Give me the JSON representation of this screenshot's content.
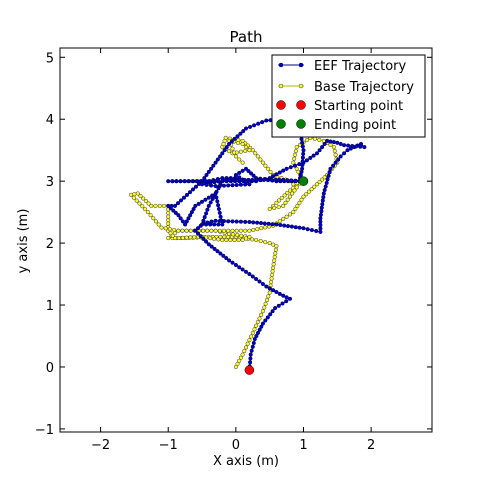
{
  "chart_data": {
    "type": "line",
    "title": "Path",
    "xlabel": "X axis (m)",
    "ylabel": "y axis (m)",
    "xlim": [
      -2.6,
      2.9
    ],
    "ylim": [
      -1.05,
      5.15
    ],
    "x_ticks": [
      "−2",
      "−1",
      "0",
      "1",
      "2"
    ],
    "y_ticks": [
      "−1",
      "0",
      "1",
      "2",
      "3",
      "4",
      "5"
    ],
    "grid": false,
    "legend_position": "top-right",
    "series": [
      {
        "name": "EEF Trajectory",
        "color": "#00008b",
        "marker_face": "#0000cc",
        "points": [
          [
            0.2,
            -0.05
          ],
          [
            0.22,
            0.2
          ],
          [
            0.28,
            0.45
          ],
          [
            0.4,
            0.7
          ],
          [
            0.58,
            0.95
          ],
          [
            0.8,
            1.1
          ],
          [
            0.7,
            1.15
          ],
          [
            0.45,
            1.3
          ],
          [
            0.2,
            1.5
          ],
          [
            -0.1,
            1.72
          ],
          [
            -0.4,
            1.98
          ],
          [
            -0.6,
            2.2
          ],
          [
            -0.48,
            2.32
          ],
          [
            -0.3,
            2.36
          ],
          [
            0.2,
            2.34
          ],
          [
            0.6,
            2.3
          ],
          [
            1.0,
            2.24
          ],
          [
            1.25,
            2.18
          ],
          [
            1.25,
            2.4
          ],
          [
            1.3,
            2.8
          ],
          [
            1.4,
            3.2
          ],
          [
            1.55,
            3.4
          ],
          [
            1.65,
            3.5
          ],
          [
            1.85,
            3.6
          ],
          [
            1.9,
            3.55
          ],
          [
            1.6,
            3.58
          ],
          [
            1.5,
            3.62
          ],
          [
            1.35,
            3.65
          ],
          [
            1.2,
            3.45
          ],
          [
            1.0,
            3.3
          ],
          [
            0.75,
            3.2
          ],
          [
            0.5,
            3.05
          ],
          [
            0.3,
            3.0
          ],
          [
            -0.2,
            3.0
          ],
          [
            -1.0,
            3.0
          ],
          [
            -0.7,
            3.0
          ],
          [
            -0.4,
            3.0
          ],
          [
            -0.2,
            3.05
          ],
          [
            0.05,
            3.05
          ],
          [
            -0.5,
            2.95
          ],
          [
            -0.3,
            2.92
          ],
          [
            0.2,
            2.95
          ],
          [
            0.0,
            3.1
          ],
          [
            0.15,
            3.2
          ],
          [
            0.3,
            3.05
          ],
          [
            0.6,
            3.0
          ],
          [
            1.0,
            3.0
          ],
          [
            0.7,
            3.02
          ],
          [
            0.3,
            3.02
          ],
          [
            -0.1,
            3.02
          ],
          [
            -0.2,
            3.0
          ],
          [
            -0.4,
            2.6
          ],
          [
            -0.5,
            2.3
          ],
          [
            -0.2,
            2.3
          ],
          [
            -0.3,
            2.8
          ],
          [
            -0.6,
            2.6
          ],
          [
            -0.75,
            2.3
          ],
          [
            -0.85,
            2.45
          ],
          [
            -1.0,
            2.6
          ],
          [
            -0.9,
            2.6
          ],
          [
            -0.5,
            3.0
          ],
          [
            -0.3,
            3.3
          ],
          [
            -0.1,
            3.6
          ],
          [
            0.15,
            3.85
          ],
          [
            0.45,
            3.98
          ],
          [
            0.7,
            4.0
          ],
          [
            0.85,
            3.95
          ],
          [
            0.95,
            3.8
          ],
          [
            1.0,
            3.5
          ],
          [
            0.98,
            3.2
          ],
          [
            0.95,
            3.05
          ]
        ]
      },
      {
        "name": "Base Trajectory",
        "color": "#b3b300",
        "marker_face": "#ffff33",
        "points": [
          [
            0.0,
            0.0
          ],
          [
            0.1,
            0.2
          ],
          [
            0.25,
            0.55
          ],
          [
            0.4,
            0.9
          ],
          [
            0.5,
            1.2
          ],
          [
            0.55,
            1.6
          ],
          [
            0.6,
            1.95
          ],
          [
            0.5,
            2.0
          ],
          [
            0.3,
            2.05
          ],
          [
            0.0,
            2.1
          ],
          [
            -0.4,
            2.1
          ],
          [
            -0.75,
            2.08
          ],
          [
            -1.0,
            2.08
          ],
          [
            -0.85,
            2.2
          ],
          [
            -0.55,
            2.2
          ],
          [
            -0.3,
            2.2
          ],
          [
            -0.1,
            2.15
          ],
          [
            0.2,
            2.1
          ],
          [
            0.1,
            2.05
          ],
          [
            -0.2,
            2.05
          ],
          [
            -0.5,
            2.1
          ],
          [
            -0.9,
            2.08
          ],
          [
            -1.0,
            2.2
          ],
          [
            -1.0,
            2.6
          ],
          [
            -1.25,
            2.6
          ],
          [
            -1.45,
            2.8
          ],
          [
            -1.55,
            2.78
          ],
          [
            -1.3,
            2.5
          ],
          [
            -1.1,
            2.25
          ],
          [
            -0.85,
            2.2
          ],
          [
            -0.3,
            2.2
          ],
          [
            0.2,
            2.2
          ],
          [
            0.55,
            2.28
          ],
          [
            0.85,
            2.5
          ],
          [
            1.0,
            2.75
          ],
          [
            1.2,
            2.95
          ],
          [
            1.35,
            3.1
          ],
          [
            1.5,
            3.3
          ],
          [
            1.45,
            3.55
          ],
          [
            1.3,
            3.65
          ],
          [
            1.1,
            3.7
          ],
          [
            0.9,
            3.55
          ],
          [
            0.85,
            3.3
          ],
          [
            1.0,
            3.0
          ],
          [
            0.8,
            2.85
          ],
          [
            0.6,
            2.65
          ],
          [
            0.5,
            2.55
          ],
          [
            0.7,
            2.6
          ],
          [
            0.9,
            2.9
          ],
          [
            0.8,
            3.0
          ],
          [
            0.55,
            3.1
          ],
          [
            0.4,
            3.3
          ],
          [
            0.25,
            3.5
          ],
          [
            0.1,
            3.65
          ],
          [
            -0.15,
            3.7
          ],
          [
            -0.2,
            3.55
          ],
          [
            -0.05,
            3.45
          ],
          [
            0.2,
            3.5
          ],
          [
            0.1,
            3.6
          ],
          [
            -0.1,
            3.65
          ],
          [
            0.0,
            3.4
          ],
          [
            0.1,
            3.3
          ]
        ]
      }
    ],
    "markers": [
      {
        "name": "Starting point",
        "x": 0.2,
        "y": -0.05,
        "color": "#ff0000"
      },
      {
        "name": "Ending point",
        "x": 1.0,
        "y": 3.0,
        "color": "#008000"
      }
    ]
  }
}
